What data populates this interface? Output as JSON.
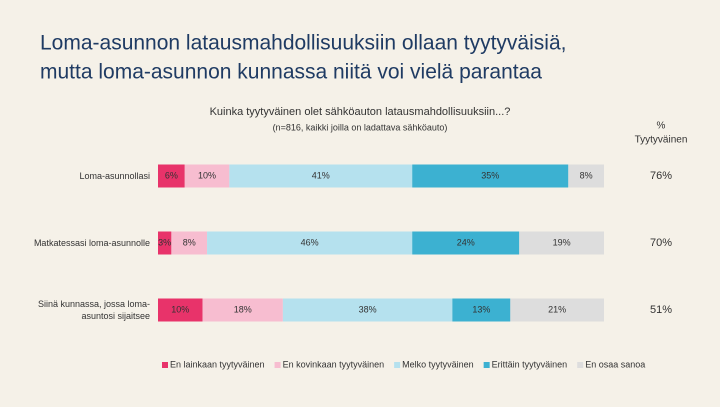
{
  "chart_data": {
    "type": "stacked-bar-horizontal",
    "title": [
      "Loma-asunnon latausmahdollisuuksiin ollaan tyytyväisiä,",
      "mutta loma-asunnon kunnassa niitä voi vielä parantaa"
    ],
    "subtitle": "Kuinka tyytyväinen olet sähköauton latausmahdollisuuksiin...?",
    "note": "(n=816, kaikki joilla on ladattava sähköauto)",
    "categories": [
      "Loma-asunnollasi",
      "Matkatessasi loma-asunnolle",
      "Siinä kunnassa, jossa loma-asuntosi sijaitsee"
    ],
    "xlim": [
      0,
      100
    ],
    "series": [
      {
        "name": "En lainkaan tyytyväinen",
        "color": "#e8336a",
        "values": [
          6,
          3,
          10
        ],
        "value_labels": [
          "6%",
          "3%",
          "10%"
        ]
      },
      {
        "name": "En kovinkaan tyytyväinen",
        "color": "#f7bdd0",
        "values": [
          10,
          8,
          18
        ],
        "value_labels": [
          "10%",
          "8%",
          "18%"
        ]
      },
      {
        "name": "Melko tyytyväinen",
        "color": "#b5e1ee",
        "values": [
          41,
          46,
          38
        ],
        "value_labels": [
          "41%",
          "46%",
          "38%"
        ]
      },
      {
        "name": "Erittäin tyytyväinen",
        "color": "#3cb1d1",
        "values": [
          35,
          24,
          13
        ],
        "value_labels": [
          "35%",
          "24%",
          "13%"
        ]
      },
      {
        "name": "En osaa sanoa",
        "color": "#dddddd",
        "values": [
          8,
          19,
          21
        ],
        "value_labels": [
          "8%",
          "19%",
          "21%"
        ]
      }
    ],
    "satisfied": {
      "title": [
        "%",
        "Tyytyväinen"
      ],
      "values": [
        76,
        70,
        51
      ],
      "value_labels": [
        "76%",
        "70%",
        "51%"
      ]
    }
  }
}
